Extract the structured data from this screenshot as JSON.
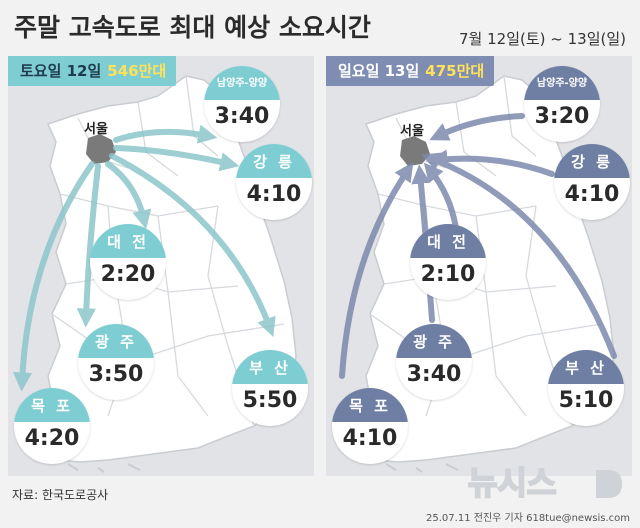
{
  "title": "주말 고속도로 최대 예상 소요시간",
  "date_range": "7월 12일(토) ~ 13일(일)",
  "saturday": {
    "label": "토요일 12일",
    "traffic": "546만대",
    "origin": "서울",
    "routes": [
      {
        "city": "남양주-양양",
        "time": "3:40"
      },
      {
        "city": "강 릉",
        "time": "4:10"
      },
      {
        "city": "대 전",
        "time": "2:20"
      },
      {
        "city": "광 주",
        "time": "3:50"
      },
      {
        "city": "목 포",
        "time": "4:20"
      },
      {
        "city": "부 산",
        "time": "5:50"
      }
    ]
  },
  "sunday": {
    "label": "일요일 13일",
    "traffic": "475만대",
    "destination": "서울",
    "routes": [
      {
        "city": "남양주-양양",
        "time": "3:20"
      },
      {
        "city": "강 릉",
        "time": "4:10"
      },
      {
        "city": "대 전",
        "time": "2:10"
      },
      {
        "city": "광 주",
        "time": "3:40"
      },
      {
        "city": "목 포",
        "time": "4:10"
      },
      {
        "city": "부 산",
        "time": "5:10"
      }
    ]
  },
  "colors": {
    "saturday_accent": "#7ecdd2",
    "sunday_accent": "#6f7ea3",
    "traffic_highlight": "#ffe25a",
    "seoul_marker": "#7a7a7a"
  },
  "logo_text": "뉴시스",
  "source": "자료: 한국도로공사",
  "credit": "25.07.11 전진우 기자 618tue@newsis.com"
}
